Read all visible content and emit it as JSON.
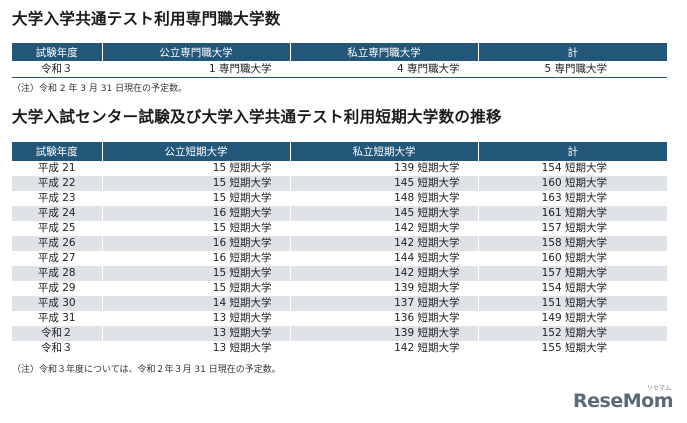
{
  "section1": {
    "title": "大学入学共通テスト利用専門職大学数",
    "headers": [
      "試験年度",
      "公立専門職大学",
      "私立専門職大学",
      "計"
    ],
    "rows": [
      [
        "令和３",
        "1 専門職大学",
        "4 専門職大学",
        "5 専門職大学"
      ]
    ],
    "note": "（注）令和 2 年 3 月 31 日現在の予定数。"
  },
  "section2": {
    "title": "大学入試センター試験及び大学入学共通テスト利用短期大学数の推移",
    "headers": [
      "試験年度",
      "公立短期大学",
      "私立短期大学",
      "計"
    ],
    "rows": [
      [
        "平成 21",
        "15 短期大学",
        "139 短期大学",
        "154 短期大学"
      ],
      [
        "平成 22",
        "15 短期大学",
        "145 短期大学",
        "160 短期大学"
      ],
      [
        "平成 23",
        "15 短期大学",
        "148 短期大学",
        "163 短期大学"
      ],
      [
        "平成 24",
        "16 短期大学",
        "145 短期大学",
        "161 短期大学"
      ],
      [
        "平成 25",
        "15 短期大学",
        "142 短期大学",
        "157 短期大学"
      ],
      [
        "平成 26",
        "16 短期大学",
        "142 短期大学",
        "158 短期大学"
      ],
      [
        "平成 27",
        "16 短期大学",
        "144 短期大学",
        "160 短期大学"
      ],
      [
        "平成 28",
        "15 短期大学",
        "142 短期大学",
        "157 短期大学"
      ],
      [
        "平成 29",
        "15 短期大学",
        "139 短期大学",
        "154 短期大学"
      ],
      [
        "平成 30",
        "14 短期大学",
        "137 短期大学",
        "151 短期大学"
      ],
      [
        "平成 31",
        "13 短期大学",
        "136 短期大学",
        "149 短期大学"
      ],
      [
        "令和２",
        "13 短期大学",
        "139 短期大学",
        "152 短期大学"
      ],
      [
        "令和３",
        "13 短期大学",
        "142 短期大学",
        "155 短期大学"
      ]
    ],
    "note": "（注）令和３年度については、令和２年３月 31 日現在の予定数。"
  },
  "watermark": {
    "logo_text": "ReseMom",
    "logo_ruby": "リセマム"
  },
  "colors": {
    "header_bg": "#235779",
    "stripe_bg": "#dfe2e6",
    "logo": "#5a6a79"
  }
}
